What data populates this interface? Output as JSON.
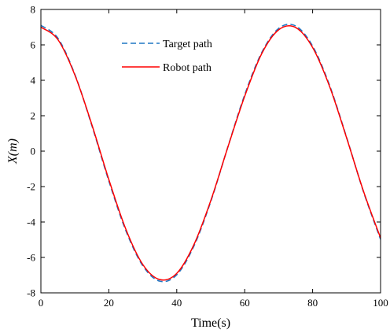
{
  "chart_data": {
    "type": "line",
    "title": "",
    "xlabel": "Time(s)",
    "ylabel": "X(m)",
    "xlim": [
      0,
      100
    ],
    "ylim": [
      -8,
      8
    ],
    "xticks": [
      "0",
      "20",
      "40",
      "60",
      "80",
      "100"
    ],
    "yticks": [
      "-8",
      "-6",
      "-4",
      "-2",
      "0",
      "2",
      "4",
      "6",
      "8"
    ],
    "grid": false,
    "legend_position": "top-left",
    "series": [
      {
        "name": "Target path",
        "style": "dashed",
        "color": "#1f77c4",
        "x": [
          0,
          5,
          10,
          15,
          20,
          25,
          30,
          35,
          40,
          45,
          50,
          55,
          60,
          65,
          70,
          75,
          80,
          85,
          90,
          95,
          100
        ],
        "y": [
          7.1,
          6.38,
          4.33,
          1.45,
          -1.68,
          -4.48,
          -6.47,
          -7.34,
          -6.98,
          -5.38,
          -2.85,
          0.21,
          3.18,
          5.56,
          6.93,
          7.07,
          5.93,
          3.71,
          0.78,
          -2.31,
          -4.98
        ]
      },
      {
        "name": "Robot path",
        "style": "solid",
        "color": "#ff0000",
        "x": [
          0,
          5,
          10,
          15,
          20,
          25,
          30,
          35,
          40,
          45,
          50,
          55,
          60,
          65,
          70,
          75,
          80,
          85,
          90,
          95,
          100
        ],
        "y": [
          7.0,
          6.3,
          4.3,
          1.5,
          -1.6,
          -4.4,
          -6.4,
          -7.25,
          -6.9,
          -5.3,
          -2.8,
          0.2,
          3.1,
          5.5,
          6.85,
          6.98,
          5.85,
          3.65,
          0.75,
          -2.28,
          -4.9
        ]
      }
    ]
  }
}
